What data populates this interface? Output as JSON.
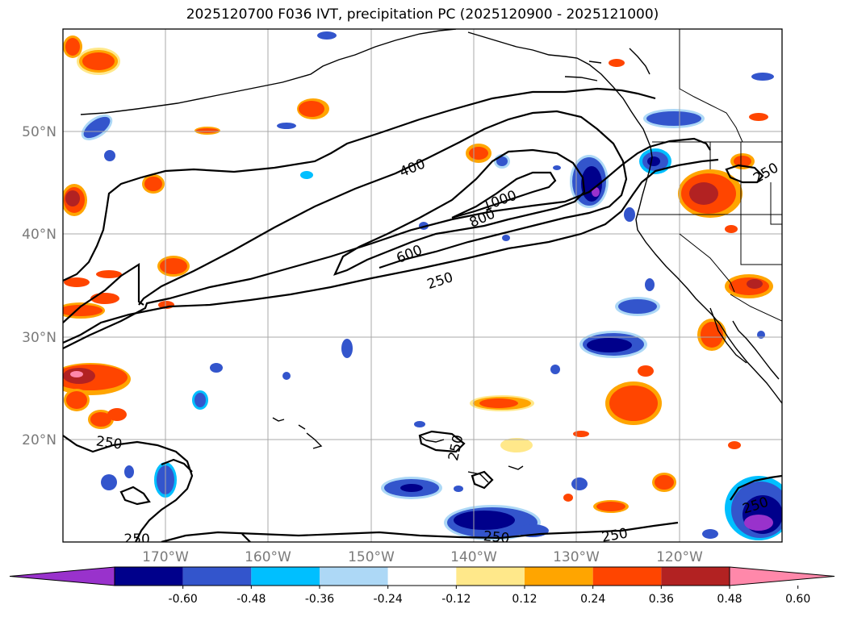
{
  "title": "2025120700 F036 IVT, precipitation PC (2025120900 - 2025121000)",
  "map": {
    "lon_range": [
      -180,
      -110
    ],
    "lat_range": [
      10,
      60
    ],
    "lat_ticks": [
      {
        "value": 50,
        "label": "50°N"
      },
      {
        "value": 40,
        "label": "40°N"
      },
      {
        "value": 30,
        "label": "30°N"
      },
      {
        "value": 20,
        "label": "20°N"
      }
    ],
    "lon_ticks": [
      {
        "value": -170,
        "label": "170°W"
      },
      {
        "value": -160,
        "label": "160°W"
      },
      {
        "value": -150,
        "label": "150°W"
      },
      {
        "value": -140,
        "label": "140°W"
      },
      {
        "value": -130,
        "label": "130°W"
      },
      {
        "value": -120,
        "label": "120°W"
      }
    ],
    "gridlines": true
  },
  "ivt_contour_labels": [
    {
      "text": "400",
      "lon": -146.0,
      "lat": 46.5,
      "rot": -22
    },
    {
      "text": "1000",
      "lon": -137.5,
      "lat": 43.3,
      "rot": -20
    },
    {
      "text": "800",
      "lon": -139.2,
      "lat": 41.6,
      "rot": -24
    },
    {
      "text": "600",
      "lon": -146.3,
      "lat": 38.1,
      "rot": -22
    },
    {
      "text": "250",
      "lon": -143.3,
      "lat": 35.5,
      "rot": -18
    },
    {
      "text": "250",
      "lon": -111.6,
      "lat": 46.0,
      "rot": -30
    },
    {
      "text": "250",
      "lon": -175.5,
      "lat": 19.7,
      "rot": 8
    },
    {
      "text": "250",
      "lon": -141.8,
      "lat": 19.2,
      "rot": -78
    },
    {
      "text": "250",
      "lon": -112.6,
      "lat": 13.6,
      "rot": -18
    },
    {
      "text": "250",
      "lon": -137.8,
      "lat": 10.5,
      "rot": 5
    },
    {
      "text": "250",
      "lon": -126.3,
      "lat": 10.7,
      "rot": -10
    },
    {
      "text": "250",
      "lon": -172.8,
      "lat": 10.3,
      "rot": 0
    }
  ],
  "colorbar": {
    "ticks": [
      "-0.60",
      "-0.48",
      "-0.36",
      "-0.24",
      "-0.12",
      "0.12",
      "0.24",
      "0.36",
      "0.48",
      "0.60"
    ],
    "colors": [
      "#9932cc",
      "#00008b",
      "#3355cc",
      "#00bfff",
      "#add8f6",
      "#ffffff",
      "#ffe88a",
      "#ffa500",
      "#ff4500",
      "#b22222",
      "#ff88aa"
    ]
  }
}
